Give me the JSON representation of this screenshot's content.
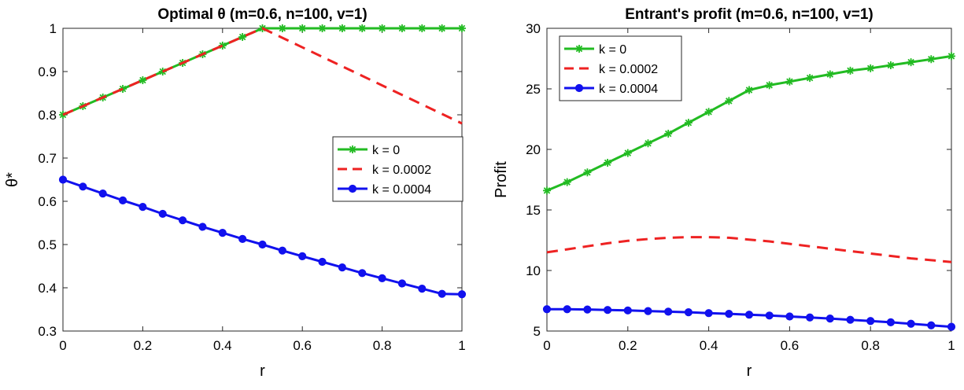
{
  "chart_data": [
    {
      "type": "line",
      "title": "Optimal θ (m=0.6, n=100, v=1)",
      "xlabel": "r",
      "ylabel": "θ*",
      "xlim": [
        0,
        1
      ],
      "ylim": [
        0.3,
        1
      ],
      "xticks": [
        "0",
        "0.2",
        "0.4",
        "0.6",
        "0.8",
        "1"
      ],
      "yticks": [
        "0.3",
        "0.4",
        "0.5",
        "0.6",
        "0.7",
        "0.8",
        "0.9",
        "1"
      ],
      "legend_position": "center-right",
      "grid": false,
      "x": [
        0,
        0.05,
        0.1,
        0.15,
        0.2,
        0.25,
        0.3,
        0.35,
        0.4,
        0.45,
        0.5,
        0.55,
        0.6,
        0.65,
        0.7,
        0.75,
        0.8,
        0.85,
        0.9,
        0.95,
        1
      ],
      "series": [
        {
          "name": "k = 0",
          "color": "#22bb22",
          "style": "solid",
          "marker": "star",
          "values": [
            0.8,
            0.82,
            0.84,
            0.86,
            0.88,
            0.9,
            0.92,
            0.94,
            0.96,
            0.98,
            1,
            1,
            1,
            1,
            1,
            1,
            1,
            1,
            1,
            1,
            1
          ]
        },
        {
          "name": "k = 0.0002",
          "color": "#ee2222",
          "style": "dashed",
          "marker": "none",
          "values": [
            0.8,
            0.82,
            0.84,
            0.86,
            0.88,
            0.9,
            0.92,
            0.94,
            0.96,
            0.98,
            1,
            0.978,
            0.956,
            0.934,
            0.912,
            0.89,
            0.868,
            0.846,
            0.824,
            0.802,
            0.78
          ]
        },
        {
          "name": "k = 0.0004",
          "color": "#1111ee",
          "style": "solid",
          "marker": "circle",
          "values": [
            0.65,
            0.634,
            0.618,
            0.602,
            0.587,
            0.571,
            0.556,
            0.541,
            0.527,
            0.513,
            0.5,
            0.486,
            0.473,
            0.46,
            0.447,
            0.434,
            0.422,
            0.41,
            0.398,
            0.386,
            0.385
          ]
        }
      ]
    },
    {
      "type": "line",
      "title": "Entrant's profit (m=0.6, n=100, v=1)",
      "xlabel": "r",
      "ylabel": "Profit",
      "xlim": [
        0,
        1
      ],
      "ylim": [
        5,
        30
      ],
      "xticks": [
        "0",
        "0.2",
        "0.4",
        "0.6",
        "0.8",
        "1"
      ],
      "yticks": [
        "5",
        "10",
        "15",
        "20",
        "25",
        "30"
      ],
      "legend_position": "top-left",
      "grid": false,
      "x": [
        0,
        0.05,
        0.1,
        0.15,
        0.2,
        0.25,
        0.3,
        0.35,
        0.4,
        0.45,
        0.5,
        0.55,
        0.6,
        0.65,
        0.7,
        0.75,
        0.8,
        0.85,
        0.9,
        0.95,
        1
      ],
      "series": [
        {
          "name": "k = 0",
          "color": "#22bb22",
          "style": "solid",
          "marker": "star",
          "values": [
            16.6,
            17.3,
            18.1,
            18.9,
            19.7,
            20.5,
            21.3,
            22.2,
            23.1,
            24.0,
            24.9,
            25.3,
            25.6,
            25.9,
            26.2,
            26.5,
            26.7,
            26.95,
            27.2,
            27.45,
            27.7
          ]
        },
        {
          "name": "k = 0.0002",
          "color": "#ee2222",
          "style": "dashed",
          "marker": "none",
          "values": [
            11.5,
            11.75,
            12.0,
            12.25,
            12.45,
            12.6,
            12.7,
            12.75,
            12.75,
            12.7,
            12.55,
            12.4,
            12.2,
            12.0,
            11.8,
            11.6,
            11.4,
            11.2,
            11.0,
            10.85,
            10.7
          ]
        },
        {
          "name": "k = 0.0004",
          "color": "#1111ee",
          "style": "solid",
          "marker": "circle",
          "values": [
            6.8,
            6.8,
            6.78,
            6.74,
            6.7,
            6.65,
            6.6,
            6.55,
            6.48,
            6.42,
            6.35,
            6.28,
            6.2,
            6.12,
            6.03,
            5.93,
            5.83,
            5.72,
            5.6,
            5.47,
            5.35
          ]
        }
      ]
    }
  ]
}
